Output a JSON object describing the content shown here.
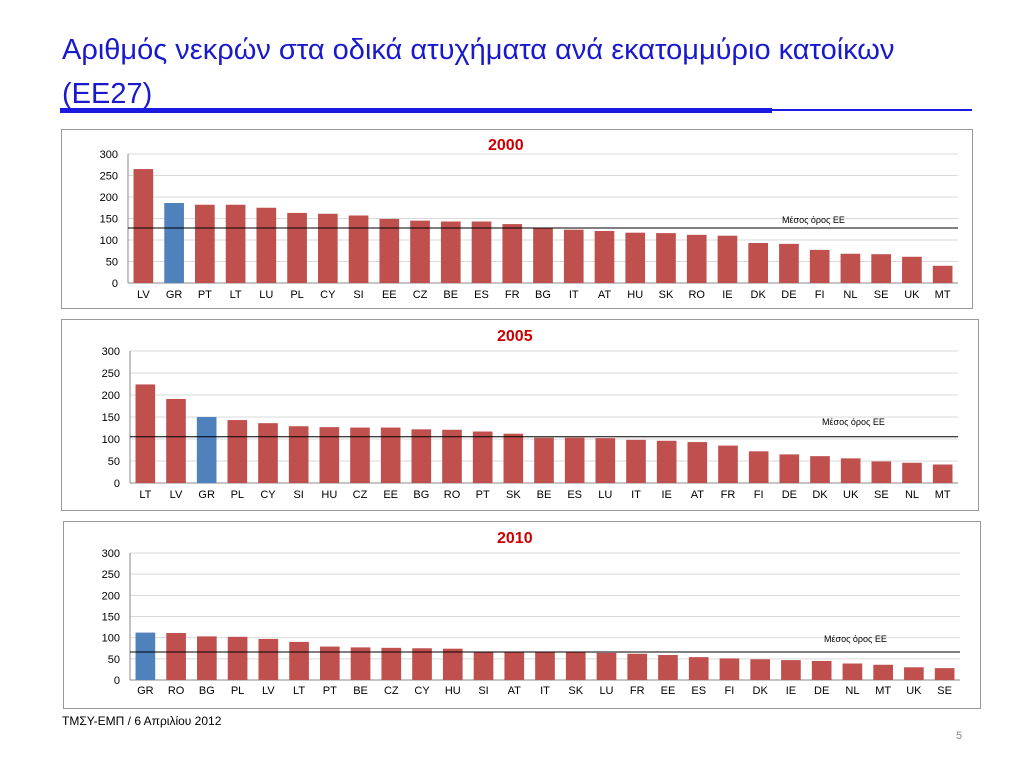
{
  "slide": {
    "title": "Αριθμός νεκρών στα οδικά ατυχήματα ανά εκατομμύριο κατοίκων (ΕΕ27)",
    "footer": "ΤΜΣΥ-ΕΜΠ / 6 Απριλίου 2012",
    "page_number": "5"
  },
  "colors": {
    "bar": "#c0504d",
    "highlight": "#4f81bd",
    "title": "#1a1acc",
    "year": "#cc0000"
  },
  "chart_data": [
    {
      "type": "bar",
      "title": "2000",
      "ylim": [
        0,
        300
      ],
      "yticks": [
        0,
        50,
        100,
        150,
        200,
        250,
        300
      ],
      "grid": true,
      "highlight": "GR",
      "categories": [
        "LV",
        "GR",
        "PT",
        "LT",
        "LU",
        "PL",
        "CY",
        "SI",
        "EE",
        "CZ",
        "BE",
        "ES",
        "FR",
        "BG",
        "IT",
        "AT",
        "HU",
        "SK",
        "RO",
        "IE",
        "DK",
        "DE",
        "FI",
        "NL",
        "SE",
        "UK",
        "MT"
      ],
      "values": [
        265,
        186,
        182,
        182,
        175,
        163,
        161,
        157,
        149,
        145,
        143,
        143,
        137,
        127,
        124,
        121,
        117,
        116,
        112,
        110,
        93,
        91,
        77,
        68,
        67,
        61,
        40
      ],
      "reference_line": {
        "label": "Μέσος όρος ΕΕ",
        "value": 128
      }
    },
    {
      "type": "bar",
      "title": "2005",
      "ylim": [
        0,
        300
      ],
      "yticks": [
        0,
        50,
        100,
        150,
        200,
        250,
        300
      ],
      "grid": true,
      "highlight": "GR",
      "categories": [
        "LT",
        "LV",
        "GR",
        "PL",
        "CY",
        "SI",
        "HU",
        "CZ",
        "EE",
        "BG",
        "RO",
        "PT",
        "SK",
        "BE",
        "ES",
        "LU",
        "IT",
        "IE",
        "AT",
        "FR",
        "FI",
        "DE",
        "DK",
        "UK",
        "SE",
        "NL",
        "MT"
      ],
      "values": [
        224,
        191,
        150,
        143,
        136,
        129,
        127,
        126,
        126,
        122,
        121,
        117,
        112,
        103,
        103,
        102,
        98,
        96,
        93,
        85,
        72,
        65,
        61,
        56,
        49,
        46,
        42
      ],
      "reference_line": {
        "label": "Μέσος όρος ΕΕ",
        "value": 105
      }
    },
    {
      "type": "bar",
      "title": "2010",
      "ylim": [
        0,
        300
      ],
      "yticks": [
        0,
        50,
        100,
        150,
        200,
        250,
        300
      ],
      "grid": true,
      "highlight": "GR",
      "categories": [
        "GR",
        "RO",
        "BG",
        "PL",
        "LV",
        "LT",
        "PT",
        "BE",
        "CZ",
        "CY",
        "HU",
        "SI",
        "AT",
        "IT",
        "SK",
        "LU",
        "FR",
        "EE",
        "ES",
        "FI",
        "DK",
        "IE",
        "DE",
        "NL",
        "MT",
        "UK",
        "SE"
      ],
      "values": [
        112,
        111,
        103,
        102,
        97,
        90,
        79,
        77,
        76,
        75,
        74,
        67,
        66,
        67,
        66,
        64,
        62,
        59,
        54,
        51,
        49,
        47,
        45,
        39,
        36,
        30,
        28
      ],
      "reference_line": {
        "label": "Μέσος όρος ΕΕ",
        "value": 66
      }
    }
  ]
}
